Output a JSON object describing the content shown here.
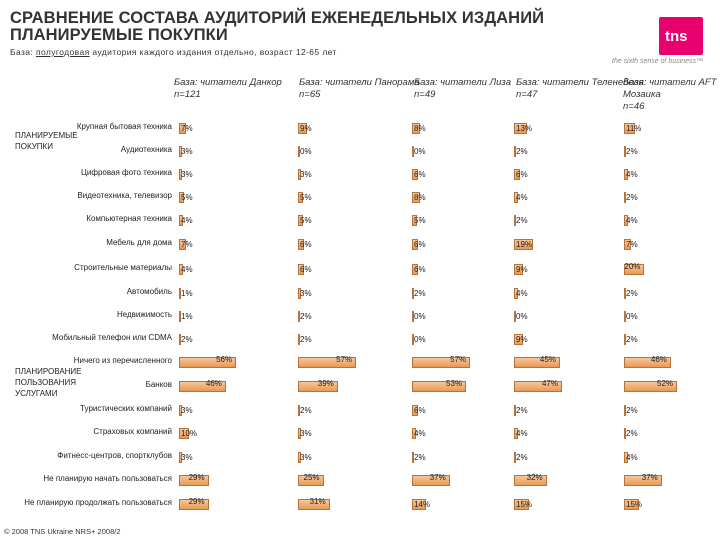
{
  "header": {
    "title_line1": "СРАВНЕНИЕ СОСТАВА АУДИТОРИЙ ЕЖЕНЕДЕЛЬНЫХ ИЗДАНИЙ",
    "title_line2": "ПЛАНИРУЕМЫЕ ПОКУПКИ",
    "subtitle_pre": "База: ",
    "subtitle_underlined": "полугодовая",
    "subtitle_post": " аудитория каждого издания отдельно, возраст 12-65 лет"
  },
  "logo": {
    "text": "tns",
    "tagline": "the sixth sense of business™",
    "color": "#e8006f"
  },
  "footer": "© 2008 TNS Ukraine  NRS+ 2008/2",
  "chart_data": {
    "type": "bar",
    "orientation": "horizontal",
    "bar_color": "#f0b27a",
    "groups": [
      {
        "label": "ПЛАНИРУЕМЫЕ ПОКУПКИ",
        "rows": [
          0,
          10
        ]
      },
      {
        "label": "ПЛАНИРОВАНИЕ ПОЛЬЗОВАНИЯ УСЛУГАМИ",
        "rows": [
          11,
          16
        ]
      }
    ],
    "categories": [
      "Крупная бытовая техника",
      "Аудиотехника",
      "Цифровая фото техника",
      "Видеотехника, телевизор",
      "Компьютерная техника",
      "Мебель для дома",
      "Строительные материалы",
      "Автомобиль",
      "Недвижимость",
      "Мобильный телефон или CDMA",
      "Ничего из перечисленного",
      "Банков",
      "Туристических компаний",
      "Страховых компаний",
      "Фитнесс-центров, спортклубов",
      "Не планирую начать пользоваться",
      "Не планирую продолжать пользоваться"
    ],
    "series": [
      {
        "name": "База: читатели Данкор, n=121",
        "values": [
          7,
          3,
          3,
          5,
          4,
          7,
          4,
          1,
          1,
          2,
          56,
          46,
          3,
          10,
          3,
          29,
          29
        ],
        "labels": [
          "7%",
          "3%",
          "3%",
          "5%",
          "4%",
          "7%",
          "4%",
          "1%",
          "1%",
          "2%",
          "56%",
          "46%",
          "3%",
          "10%",
          "3%",
          "29%",
          "29%"
        ]
      },
      {
        "name": "База: читатели Панорама, n=65",
        "values": [
          9,
          0,
          3,
          5,
          5,
          6,
          6,
          3,
          2,
          2,
          57,
          39,
          2,
          3,
          3,
          25,
          31
        ],
        "labels": [
          "9%",
          "0%",
          "3%",
          "5%",
          "5%",
          "6%",
          "6%",
          "3%",
          "2%",
          "2%",
          "57%",
          "39%",
          "2%",
          "3%",
          "3%",
          "25%",
          "31%"
        ]
      },
      {
        "name": "База: читатели Лиза, n=49",
        "values": [
          8,
          0,
          6,
          8,
          5,
          6,
          6,
          2,
          0,
          0,
          57,
          53,
          6,
          4,
          2,
          37,
          14
        ],
        "labels": [
          "8%",
          "0%",
          "6%",
          "8%",
          "5%",
          "6%",
          "6%",
          "2%",
          "0%",
          "0%",
          "57%",
          "53%",
          "6%",
          "4%",
          "2%",
          "37%",
          "14%"
        ]
      },
      {
        "name": "База: читатели Теленеделя, n=47",
        "values": [
          13,
          2,
          6,
          4,
          2,
          19,
          9,
          4,
          0,
          9,
          45,
          47,
          2,
          4,
          2,
          32,
          15
        ],
        "labels": [
          "13%",
          "2%",
          "6%",
          "4%",
          "2%",
          "19%",
          "9%",
          "4%",
          "0%",
          "9%",
          "45%",
          "47%",
          "2%",
          "4%",
          "2%",
          "32%",
          "15%"
        ]
      },
      {
        "name": "База: читатели AFT Мозаика, n=46",
        "values": [
          11,
          2,
          4,
          2,
          4,
          7,
          20,
          2,
          0,
          2,
          46,
          52,
          2,
          2,
          4,
          37,
          15
        ],
        "labels": [
          "11%",
          "2%",
          "4%",
          "2%",
          "4%",
          "7%",
          "20%",
          "2%",
          "0%",
          "2%",
          "46%",
          "52%",
          "2%",
          "2%",
          "4%",
          "37%",
          "15%"
        ]
      }
    ]
  }
}
